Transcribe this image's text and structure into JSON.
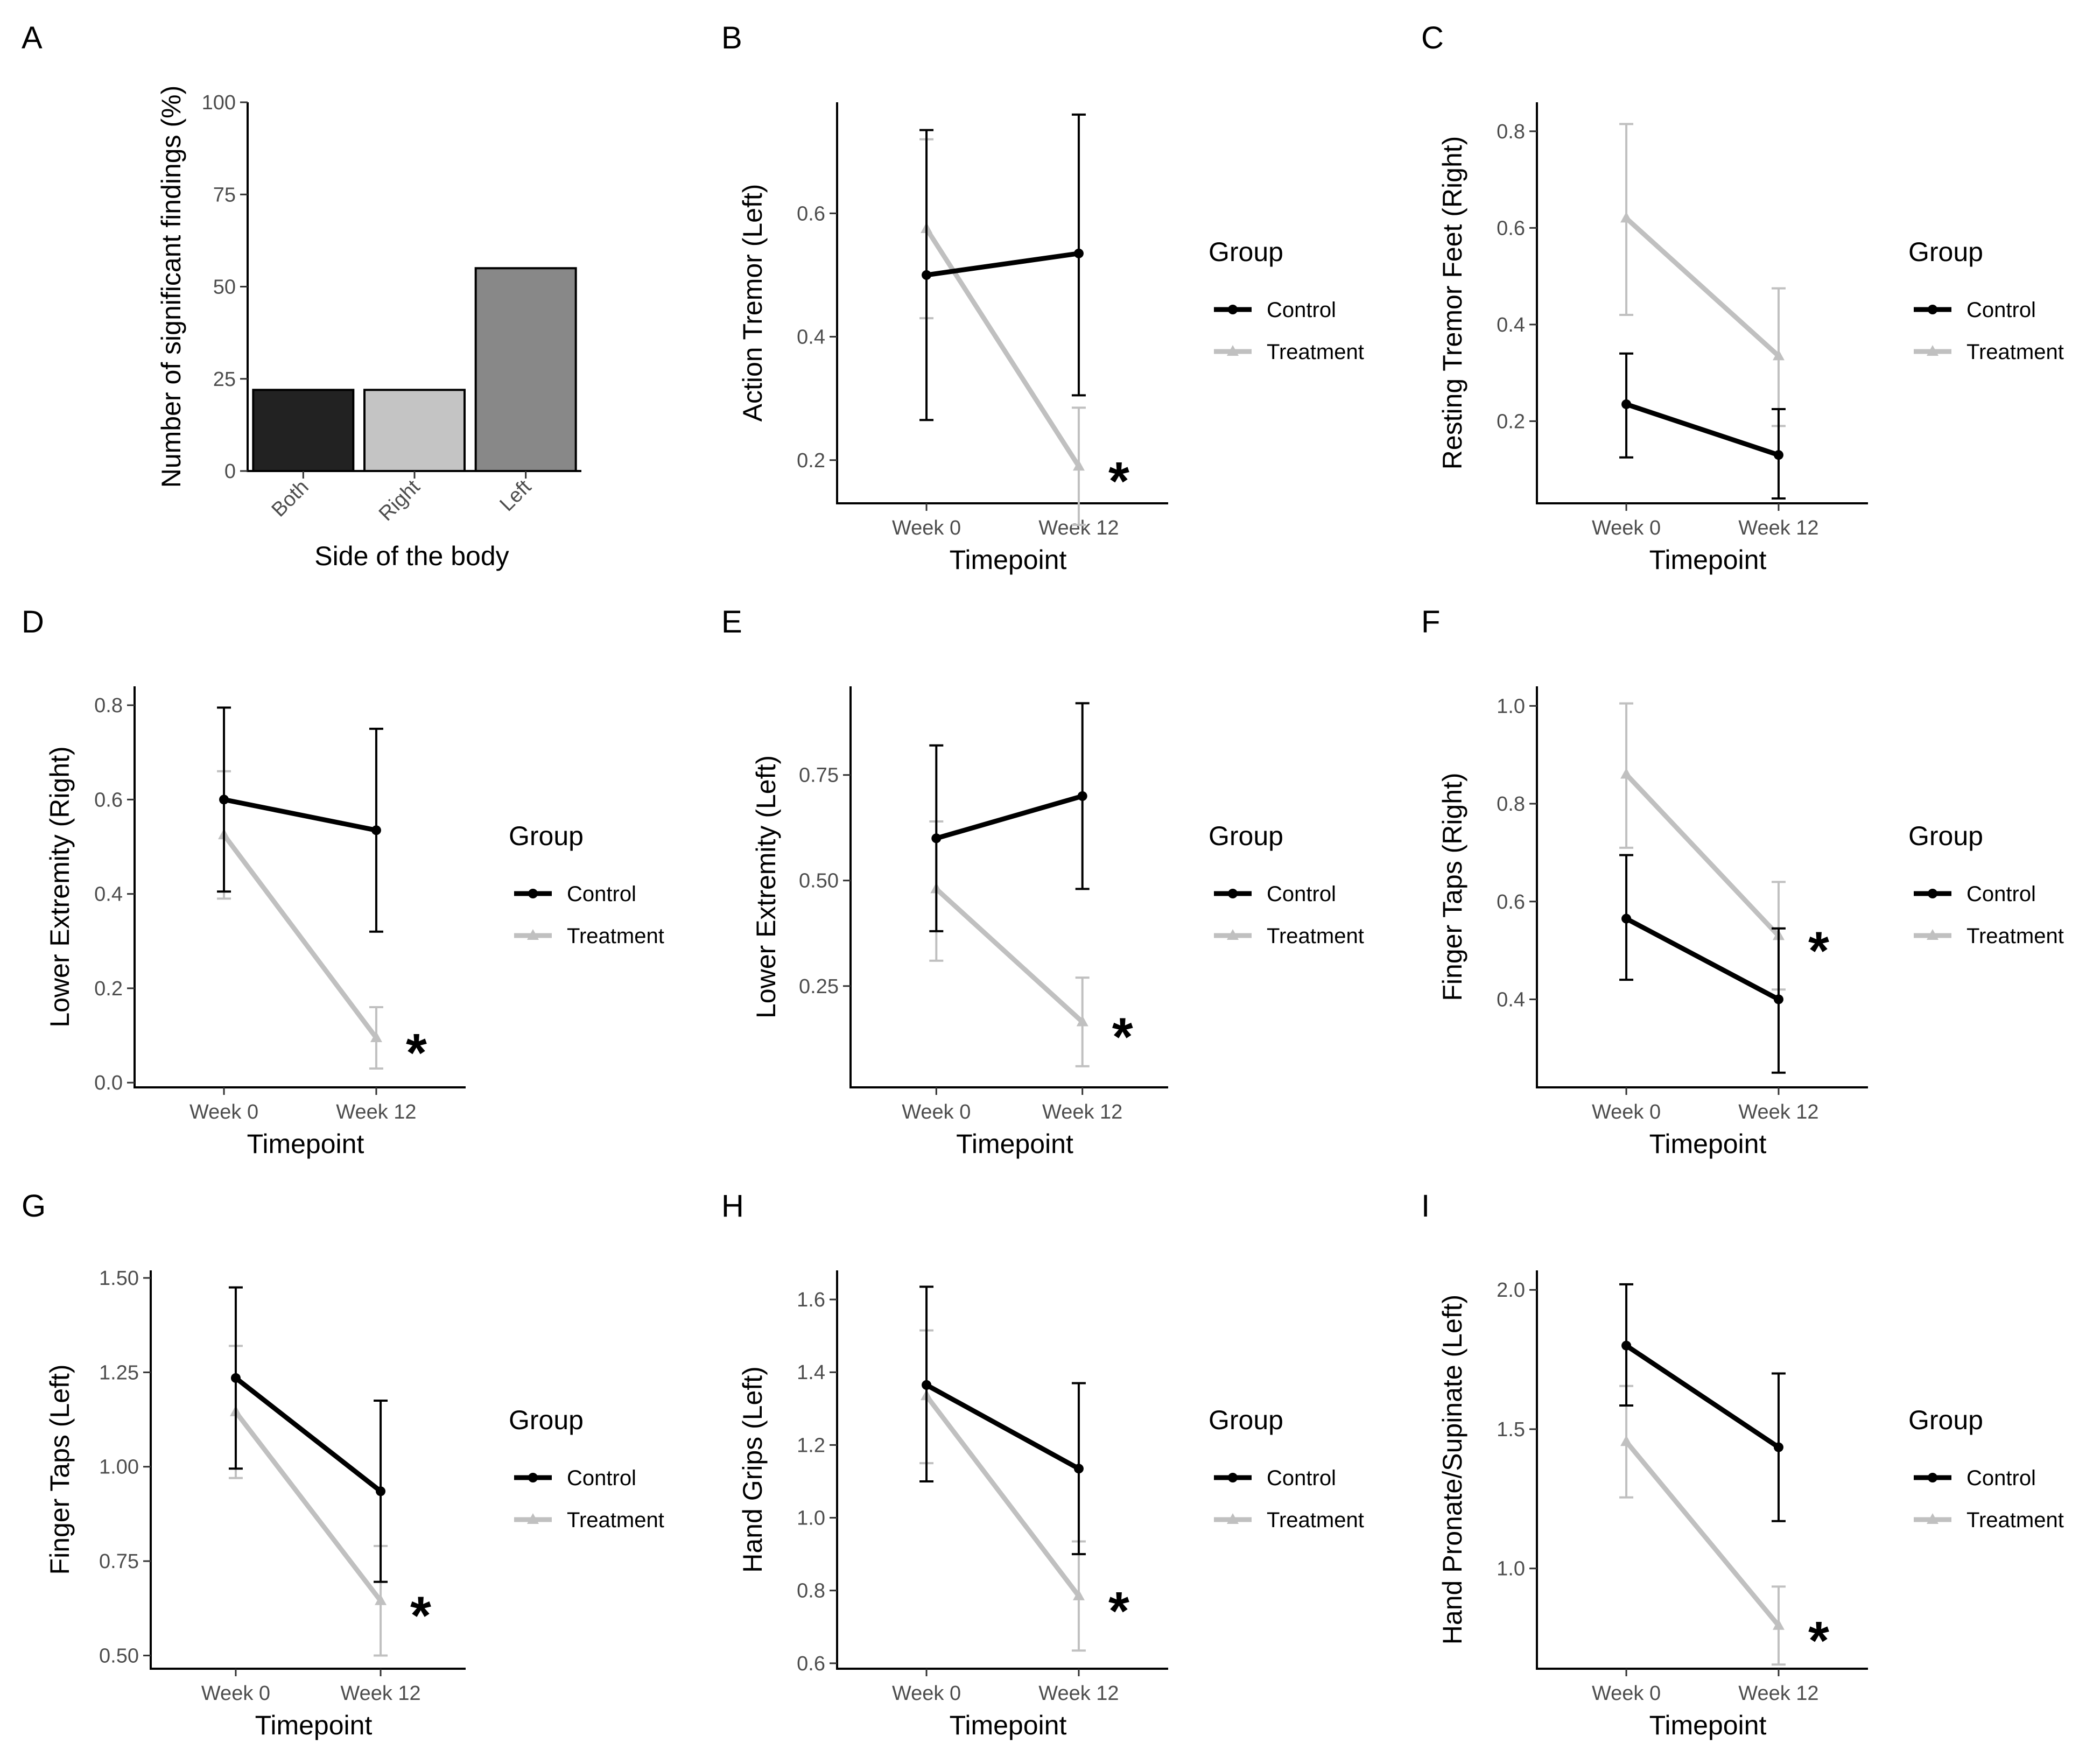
{
  "colors": {
    "control": "#000000",
    "treatment": "#c0c0c0"
  },
  "chart_data": [
    {
      "id": "A",
      "type": "bar",
      "letter": "A",
      "xlabel": "Side of the body",
      "ylabel": "Number of significant findings (%)",
      "categories": [
        "Both",
        "Right",
        "Left"
      ],
      "values": [
        22,
        22,
        55
      ],
      "bar_colors": [
        "#222222",
        "#c4c4c4",
        "#888888"
      ],
      "ylim": [
        0,
        100
      ],
      "yticks": [
        0,
        25,
        50,
        75,
        100
      ],
      "ytick_labels": [
        "0",
        "25",
        "50",
        "75",
        "100"
      ]
    },
    {
      "id": "B",
      "type": "line",
      "letter": "B",
      "xlabel": "Timepoint",
      "ylabel": "Action Tremor (Left)",
      "categories": [
        "Week 0",
        "Week 12"
      ],
      "ylim": [
        0.13,
        0.78
      ],
      "yticks": [
        0.2,
        0.4,
        0.6
      ],
      "ytick_labels": [
        "0.2",
        "0.4",
        "0.6"
      ],
      "legend_title": "Group",
      "series": [
        {
          "name": "Control",
          "values": [
            0.5,
            0.535
          ],
          "lower": [
            0.265,
            0.305
          ],
          "upper": [
            0.735,
            0.76
          ]
        },
        {
          "name": "Treatment",
          "values": [
            0.575,
            0.19
          ],
          "lower": [
            0.43,
            0.095
          ],
          "upper": [
            0.72,
            0.285
          ]
        }
      ],
      "significance": [
        {
          "category": "Week 12",
          "y": 0.19,
          "label": "*"
        }
      ]
    },
    {
      "id": "C",
      "type": "line",
      "letter": "C",
      "xlabel": "Timepoint",
      "ylabel": "Resting Tremor Feet (Right)",
      "categories": [
        "Week 0",
        "Week 12"
      ],
      "ylim": [
        0.03,
        0.86
      ],
      "yticks": [
        0.2,
        0.4,
        0.6,
        0.8
      ],
      "ytick_labels": [
        "0.2",
        "0.4",
        "0.6",
        "0.8"
      ],
      "legend_title": "Group",
      "series": [
        {
          "name": "Control",
          "values": [
            0.235,
            0.13
          ],
          "lower": [
            0.125,
            0.04
          ],
          "upper": [
            0.34,
            0.225
          ]
        },
        {
          "name": "Treatment",
          "values": [
            0.62,
            0.335
          ],
          "lower": [
            0.42,
            0.19
          ],
          "upper": [
            0.815,
            0.475
          ]
        }
      ]
    },
    {
      "id": "D",
      "type": "line",
      "letter": "D",
      "xlabel": "Timepoint",
      "ylabel": "Lower Extremity (Right)",
      "categories": [
        "Week 0",
        "Week 12"
      ],
      "ylim": [
        -0.01,
        0.84
      ],
      "yticks": [
        0.0,
        0.2,
        0.4,
        0.6,
        0.8
      ],
      "ytick_labels": [
        "0.0",
        "0.2",
        "0.4",
        "0.6",
        "0.8"
      ],
      "legend_title": "Group",
      "series": [
        {
          "name": "Control",
          "values": [
            0.6,
            0.535
          ],
          "lower": [
            0.405,
            0.32
          ],
          "upper": [
            0.795,
            0.75
          ]
        },
        {
          "name": "Treatment",
          "values": [
            0.525,
            0.095
          ],
          "lower": [
            0.39,
            0.03
          ],
          "upper": [
            0.66,
            0.16
          ]
        }
      ],
      "significance": [
        {
          "category": "Week 12",
          "y": 0.095,
          "label": "*"
        }
      ]
    },
    {
      "id": "E",
      "type": "line",
      "letter": "E",
      "xlabel": "Timepoint",
      "ylabel": "Lower Extremity (Left)",
      "categories": [
        "Week 0",
        "Week 12"
      ],
      "ylim": [
        0.01,
        0.96
      ],
      "yticks": [
        0.25,
        0.5,
        0.75
      ],
      "ytick_labels": [
        "0.25",
        "0.50",
        "0.75"
      ],
      "legend_title": "Group",
      "series": [
        {
          "name": "Control",
          "values": [
            0.6,
            0.7
          ],
          "lower": [
            0.38,
            0.48
          ],
          "upper": [
            0.82,
            0.92
          ]
        },
        {
          "name": "Treatment",
          "values": [
            0.48,
            0.165
          ],
          "lower": [
            0.31,
            0.06
          ],
          "upper": [
            0.64,
            0.27
          ]
        }
      ],
      "significance": [
        {
          "category": "Week 12",
          "y": 0.165,
          "label": "*"
        }
      ]
    },
    {
      "id": "F",
      "type": "line",
      "letter": "F",
      "xlabel": "Timepoint",
      "ylabel": "Finger Taps (Right)",
      "categories": [
        "Week 0",
        "Week 12"
      ],
      "ylim": [
        0.22,
        1.04
      ],
      "yticks": [
        0.4,
        0.6,
        0.8,
        1.0
      ],
      "ytick_labels": [
        "0.4",
        "0.6",
        "0.8",
        "1.0"
      ],
      "legend_title": "Group",
      "series": [
        {
          "name": "Control",
          "values": [
            0.565,
            0.4
          ],
          "lower": [
            0.44,
            0.25
          ],
          "upper": [
            0.695,
            0.545
          ]
        },
        {
          "name": "Treatment",
          "values": [
            0.86,
            0.53
          ],
          "lower": [
            0.71,
            0.42
          ],
          "upper": [
            1.005,
            0.64
          ]
        }
      ],
      "significance": [
        {
          "category": "Week 12",
          "y": 0.53,
          "label": "*"
        }
      ]
    },
    {
      "id": "G",
      "type": "line",
      "letter": "G",
      "xlabel": "Timepoint",
      "ylabel": "Finger Taps (Left)",
      "categories": [
        "Week 0",
        "Week 12"
      ],
      "ylim": [
        0.465,
        1.52
      ],
      "yticks": [
        0.5,
        0.75,
        1.0,
        1.25,
        1.5
      ],
      "ytick_labels": [
        "0.50",
        "0.75",
        "1.00",
        "1.25",
        "1.50"
      ],
      "legend_title": "Group",
      "series": [
        {
          "name": "Control",
          "values": [
            1.235,
            0.935
          ],
          "lower": [
            0.995,
            0.695
          ],
          "upper": [
            1.475,
            1.175
          ]
        },
        {
          "name": "Treatment",
          "values": [
            1.145,
            0.645
          ],
          "lower": [
            0.97,
            0.5
          ],
          "upper": [
            1.32,
            0.79
          ]
        }
      ],
      "significance": [
        {
          "category": "Week 12",
          "y": 0.645,
          "label": "*"
        }
      ]
    },
    {
      "id": "H",
      "type": "line",
      "letter": "H",
      "xlabel": "Timepoint",
      "ylabel": "Hand Grips (Left)",
      "categories": [
        "Week 0",
        "Week 12"
      ],
      "ylim": [
        0.585,
        1.68
      ],
      "yticks": [
        0.6,
        0.8,
        1.0,
        1.2,
        1.4,
        1.6
      ],
      "ytick_labels": [
        "0.6",
        "0.8",
        "1.0",
        "1.2",
        "1.4",
        "1.6"
      ],
      "legend_title": "Group",
      "series": [
        {
          "name": "Control",
          "values": [
            1.365,
            1.135
          ],
          "lower": [
            1.1,
            0.9
          ],
          "upper": [
            1.635,
            1.37
          ]
        },
        {
          "name": "Treatment",
          "values": [
            1.335,
            0.785
          ],
          "lower": [
            1.15,
            0.635
          ],
          "upper": [
            1.515,
            0.935
          ]
        }
      ],
      "significance": [
        {
          "category": "Week 12",
          "y": 0.785,
          "label": "*"
        }
      ]
    },
    {
      "id": "I",
      "type": "line",
      "letter": "I",
      "xlabel": "Timepoint",
      "ylabel": "Hand Pronate/Supinate (Left)",
      "categories": [
        "Week 0",
        "Week 12"
      ],
      "ylim": [
        0.64,
        2.07
      ],
      "yticks": [
        1.0,
        1.5,
        2.0
      ],
      "ytick_labels": [
        "1.0",
        "1.5",
        "2.0"
      ],
      "legend_title": "Group",
      "series": [
        {
          "name": "Control",
          "values": [
            1.8,
            1.435
          ],
          "lower": [
            1.585,
            1.17
          ],
          "upper": [
            2.02,
            1.7
          ]
        },
        {
          "name": "Treatment",
          "values": [
            1.455,
            0.795
          ],
          "lower": [
            1.255,
            0.655
          ],
          "upper": [
            1.655,
            0.935
          ]
        }
      ],
      "significance": [
        {
          "category": "Week 12",
          "y": 0.795,
          "label": "*"
        }
      ]
    }
  ]
}
